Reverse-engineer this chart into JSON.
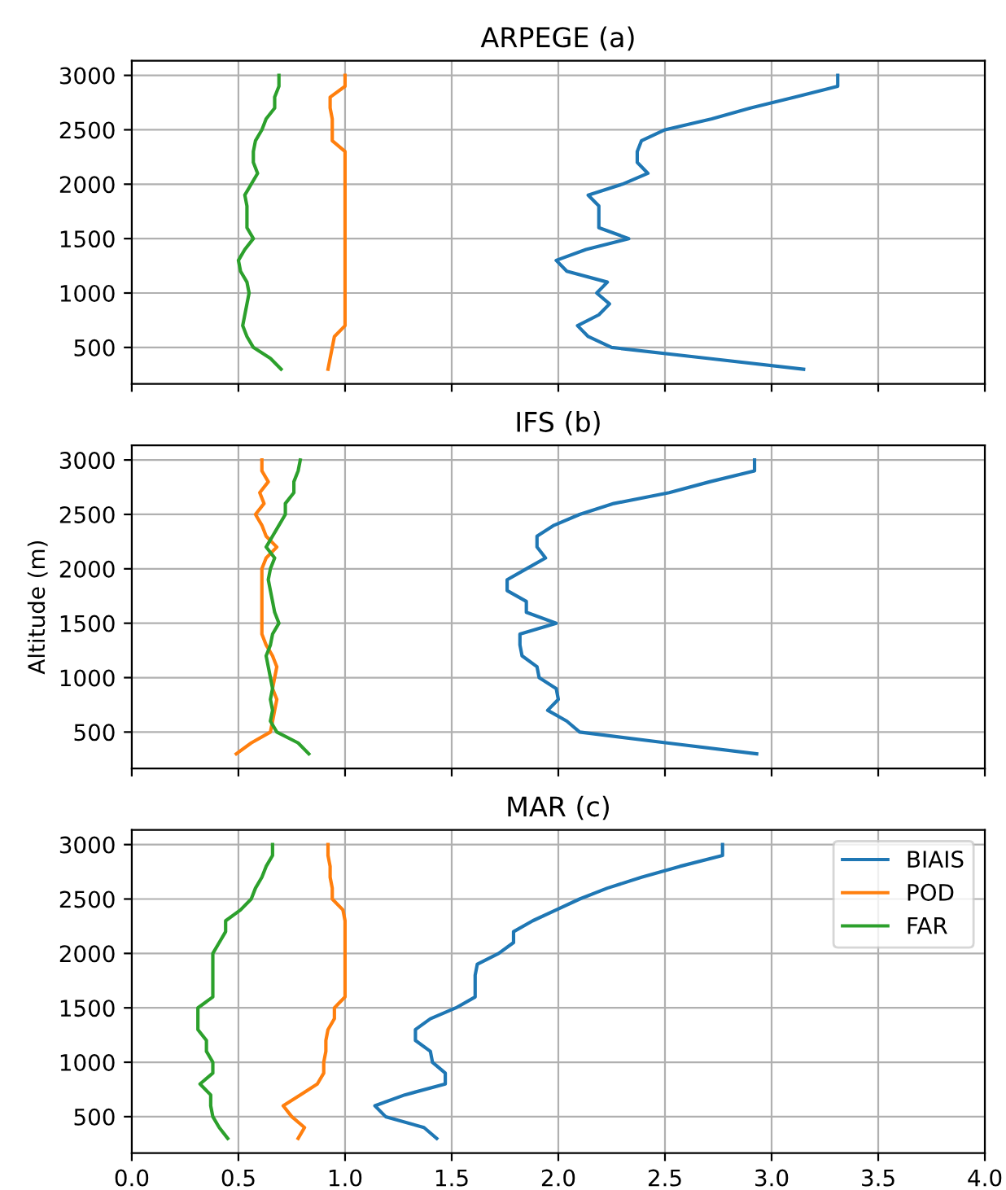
{
  "chart_data": [
    {
      "type": "line",
      "title": "ARPEGE (a)",
      "xlim": [
        0,
        4
      ],
      "xticks": [
        {
          "value": 0,
          "label": null
        },
        {
          "value": 0.5,
          "label": null
        },
        {
          "value": 1,
          "label": null
        },
        {
          "value": 1.5,
          "label": null
        },
        {
          "value": 2,
          "label": null
        },
        {
          "value": 2.5,
          "label": null
        },
        {
          "value": 3,
          "label": null
        },
        {
          "value": 3.5,
          "label": null
        },
        {
          "value": 4,
          "label": null
        }
      ],
      "ylim": [
        165,
        3135
      ],
      "yticks": [
        500,
        1000,
        1500,
        2000,
        2500,
        3000
      ],
      "grid": true,
      "legend": false,
      "tick_labels": "y",
      "series": [
        {
          "color": "#1f77b4",
          "values": [
            300,
            400,
            500,
            600,
            700,
            800,
            900,
            1000,
            1100,
            1200,
            1300,
            1400,
            1500,
            1600,
            1700,
            1800,
            1900,
            2000,
            2100,
            2200,
            2300,
            2400,
            2500,
            2600,
            2700,
            2800,
            2900,
            3000
          ],
          "x": [
            3.15,
            2.7,
            2.25,
            2.14,
            2.09,
            2.19,
            2.24,
            2.18,
            2.23,
            2.04,
            1.99,
            2.13,
            2.33,
            2.19,
            2.19,
            2.19,
            2.14,
            2.3,
            2.42,
            2.37,
            2.37,
            2.39,
            2.5,
            2.72,
            2.9,
            3.11,
            3.31,
            3.31
          ]
        },
        {
          "color": "#ff7f0e",
          "values": [
            300,
            400,
            500,
            600,
            700,
            800,
            900,
            1000,
            1100,
            1200,
            1300,
            1400,
            1500,
            1600,
            1700,
            1800,
            1900,
            2000,
            2100,
            2200,
            2300,
            2400,
            2500,
            2600,
            2700,
            2800,
            2900,
            3000
          ],
          "x": [
            0.92,
            0.93,
            0.94,
            0.95,
            1.0,
            1.0,
            1.0,
            1.0,
            1.0,
            1.0,
            1.0,
            1.0,
            1.0,
            1.0,
            1.0,
            1.0,
            1.0,
            1.0,
            1.0,
            1.0,
            1.0,
            0.94,
            0.94,
            0.94,
            0.93,
            0.93,
            1.0,
            1.0
          ]
        },
        {
          "color": "#2ca02c",
          "values": [
            300,
            400,
            500,
            600,
            700,
            800,
            900,
            1000,
            1100,
            1200,
            1300,
            1400,
            1500,
            1600,
            1700,
            1800,
            1900,
            2000,
            2100,
            2200,
            2300,
            2400,
            2500,
            2600,
            2700,
            2800,
            2900,
            3000
          ],
          "x": [
            0.7,
            0.65,
            0.57,
            0.54,
            0.52,
            0.53,
            0.54,
            0.55,
            0.54,
            0.51,
            0.5,
            0.53,
            0.57,
            0.54,
            0.54,
            0.54,
            0.53,
            0.56,
            0.59,
            0.57,
            0.57,
            0.58,
            0.61,
            0.63,
            0.67,
            0.67,
            0.69,
            0.69
          ]
        }
      ]
    },
    {
      "type": "line",
      "title": "IFS (b)",
      "ylabel": "Altitude (m)",
      "xlim": [
        0,
        4
      ],
      "xticks": [
        {
          "value": 0,
          "label": null
        },
        {
          "value": 0.5,
          "label": null
        },
        {
          "value": 1,
          "label": null
        },
        {
          "value": 1.5,
          "label": null
        },
        {
          "value": 2,
          "label": null
        },
        {
          "value": 2.5,
          "label": null
        },
        {
          "value": 3,
          "label": null
        },
        {
          "value": 3.5,
          "label": null
        },
        {
          "value": 4,
          "label": null
        }
      ],
      "ylim": [
        165,
        3135
      ],
      "yticks": [
        500,
        1000,
        1500,
        2000,
        2500,
        3000
      ],
      "grid": true,
      "legend": false,
      "tick_labels": "y",
      "series": [
        {
          "color": "#1f77b4",
          "values": [
            300,
            400,
            500,
            600,
            700,
            800,
            900,
            1000,
            1100,
            1200,
            1300,
            1400,
            1500,
            1600,
            1700,
            1800,
            1900,
            2000,
            2100,
            2200,
            2300,
            2400,
            2500,
            2600,
            2700,
            2800,
            2900,
            3000
          ],
          "x": [
            2.93,
            2.51,
            2.1,
            2.04,
            1.95,
            2.0,
            1.99,
            1.91,
            1.9,
            1.83,
            1.82,
            1.82,
            1.99,
            1.85,
            1.85,
            1.76,
            1.76,
            1.85,
            1.94,
            1.9,
            1.9,
            1.98,
            2.1,
            2.26,
            2.52,
            2.71,
            2.92,
            2.92
          ]
        },
        {
          "color": "#ff7f0e",
          "values": [
            300,
            400,
            500,
            600,
            700,
            800,
            900,
            1000,
            1100,
            1200,
            1300,
            1400,
            1500,
            1600,
            1700,
            1800,
            1900,
            2000,
            2100,
            2200,
            2300,
            2400,
            2500,
            2600,
            2700,
            2800,
            2900,
            3000
          ],
          "x": [
            0.49,
            0.56,
            0.65,
            0.66,
            0.67,
            0.68,
            0.66,
            0.67,
            0.68,
            0.66,
            0.63,
            0.61,
            0.61,
            0.61,
            0.61,
            0.61,
            0.61,
            0.61,
            0.63,
            0.68,
            0.63,
            0.61,
            0.58,
            0.62,
            0.6,
            0.64,
            0.61,
            0.61
          ]
        },
        {
          "color": "#2ca02c",
          "values": [
            300,
            400,
            500,
            600,
            700,
            800,
            900,
            1000,
            1100,
            1200,
            1300,
            1400,
            1500,
            1600,
            1700,
            1800,
            1900,
            2000,
            2100,
            2200,
            2300,
            2400,
            2500,
            2600,
            2700,
            2800,
            2900,
            3000
          ],
          "x": [
            0.83,
            0.78,
            0.68,
            0.65,
            0.66,
            0.65,
            0.66,
            0.65,
            0.64,
            0.63,
            0.65,
            0.66,
            0.69,
            0.67,
            0.66,
            0.65,
            0.64,
            0.65,
            0.67,
            0.63,
            0.66,
            0.69,
            0.72,
            0.72,
            0.76,
            0.76,
            0.78,
            0.79
          ]
        }
      ]
    },
    {
      "type": "line",
      "title": "MAR (c)",
      "xlim": [
        0,
        4
      ],
      "xticks": [
        {
          "value": 0,
          "label": "0.0"
        },
        0.5,
        {
          "value": 1,
          "label": "1.0"
        },
        1.5,
        {
          "value": 2,
          "label": "2.0"
        },
        2.5,
        {
          "value": 3,
          "label": "3.0"
        },
        3.5,
        {
          "value": 4,
          "label": "4.0"
        }
      ],
      "ylim": [
        165,
        3135
      ],
      "yticks": [
        500,
        1000,
        1500,
        2000,
        2500,
        3000
      ],
      "grid": true,
      "legend": "top right",
      "series": [
        {
          "name": "BIAIS",
          "color": "#1f77b4",
          "values": [
            300,
            400,
            500,
            600,
            700,
            800,
            900,
            1000,
            1100,
            1200,
            1300,
            1400,
            1500,
            1600,
            1700,
            1800,
            1900,
            2000,
            2100,
            2200,
            2300,
            2400,
            2500,
            2600,
            2700,
            2800,
            2900,
            3000
          ],
          "x": [
            1.43,
            1.37,
            1.19,
            1.14,
            1.28,
            1.47,
            1.47,
            1.41,
            1.4,
            1.33,
            1.33,
            1.4,
            1.52,
            1.61,
            1.61,
            1.61,
            1.62,
            1.72,
            1.79,
            1.79,
            1.88,
            1.99,
            2.1,
            2.23,
            2.39,
            2.57,
            2.77,
            2.77
          ]
        },
        {
          "name": "POD",
          "color": "#ff7f0e",
          "values": [
            300,
            400,
            500,
            600,
            700,
            800,
            900,
            1000,
            1100,
            1200,
            1300,
            1400,
            1500,
            1600,
            1700,
            1800,
            1900,
            2000,
            2100,
            2200,
            2300,
            2400,
            2500,
            2600,
            2700,
            2800,
            2900,
            3000
          ],
          "x": [
            0.78,
            0.81,
            0.75,
            0.71,
            0.79,
            0.87,
            0.9,
            0.9,
            0.91,
            0.91,
            0.92,
            0.95,
            0.95,
            1.0,
            1.0,
            1.0,
            1.0,
            1.0,
            1.0,
            1.0,
            1.0,
            0.99,
            0.94,
            0.94,
            0.93,
            0.93,
            0.92,
            0.92
          ]
        },
        {
          "name": "FAR",
          "color": "#2ca02c",
          "values": [
            300,
            400,
            500,
            600,
            700,
            800,
            900,
            1000,
            1100,
            1200,
            1300,
            1400,
            1500,
            1600,
            1700,
            1800,
            1900,
            2000,
            2100,
            2200,
            2300,
            2400,
            2500,
            2600,
            2700,
            2800,
            2900,
            3000
          ],
          "x": [
            0.45,
            0.41,
            0.38,
            0.37,
            0.37,
            0.32,
            0.38,
            0.38,
            0.35,
            0.35,
            0.31,
            0.31,
            0.31,
            0.38,
            0.38,
            0.38,
            0.38,
            0.38,
            0.41,
            0.44,
            0.44,
            0.51,
            0.56,
            0.58,
            0.61,
            0.63,
            0.66,
            0.66
          ]
        }
      ]
    }
  ]
}
